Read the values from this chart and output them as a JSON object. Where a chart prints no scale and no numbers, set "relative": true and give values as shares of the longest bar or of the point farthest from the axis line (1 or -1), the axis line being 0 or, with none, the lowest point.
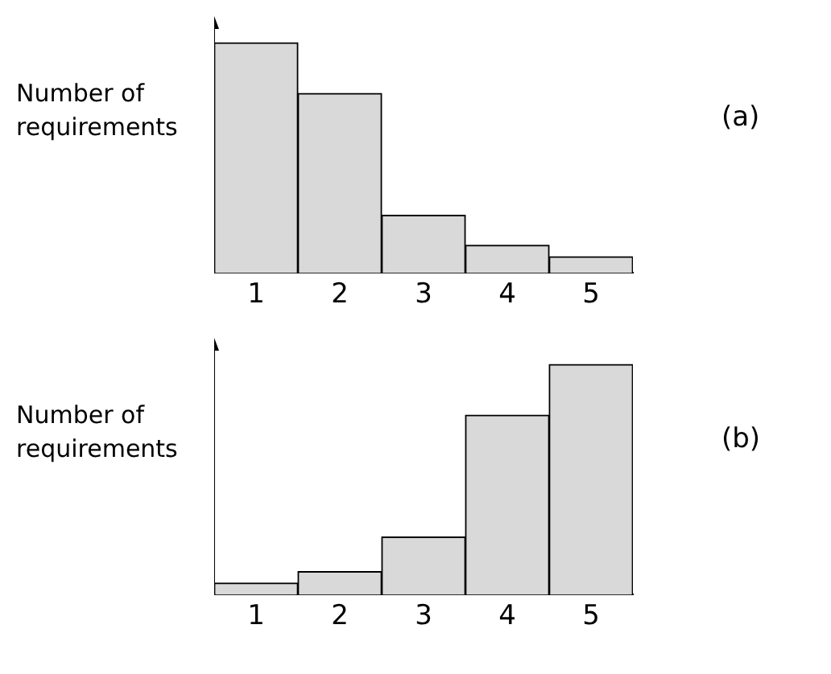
{
  "chart_data": [
    {
      "type": "bar",
      "ylabel": "Number of requirements",
      "annotations": [
        "(a)"
      ],
      "categories": [
        "1",
        "2",
        "3",
        "4",
        "5"
      ],
      "values": [
        1,
        0.78,
        0.25,
        0.12,
        0.07
      ],
      "color": "#d9d9d9",
      "relative": true,
      "grid": false,
      "legend": false
    },
    {
      "type": "bar",
      "ylabel": "Number of requirements",
      "annotations": [
        "(b)"
      ],
      "categories": [
        "1",
        "2",
        "3",
        "4",
        "5"
      ],
      "values": [
        0.05,
        0.1,
        0.25,
        0.78,
        1
      ],
      "color": "#d9d9d9",
      "relative": true,
      "grid": false,
      "legend": false
    }
  ]
}
